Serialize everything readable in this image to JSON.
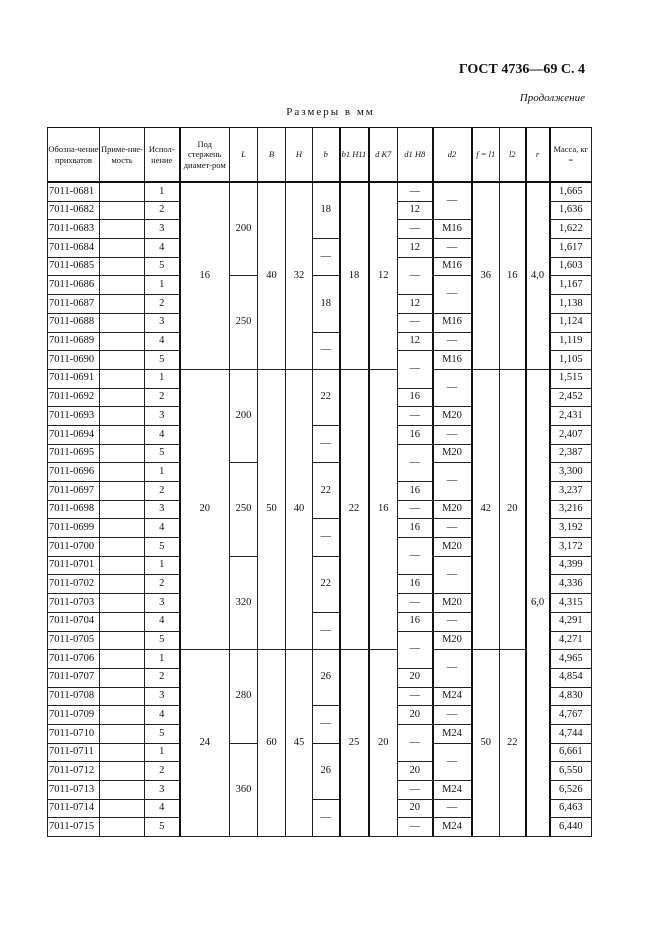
{
  "header": {
    "standard": "ГОСТ 4736—69 С. 4",
    "continuation": "Продолжение",
    "units": "Размеры в мм"
  },
  "columns": [
    {
      "key": "code",
      "label": "Обозна-чение прихватов"
    },
    {
      "key": "applicability",
      "label": "Приме-няе-мость"
    },
    {
      "key": "version",
      "label": "Испол-нение"
    },
    {
      "key": "rod",
      "label": "Под стержень диамет-ром"
    },
    {
      "key": "L",
      "label": "L"
    },
    {
      "key": "B",
      "label": "B"
    },
    {
      "key": "H",
      "label": "H"
    },
    {
      "key": "b",
      "label": "b"
    },
    {
      "key": "b1",
      "label": "b1 H11"
    },
    {
      "key": "d",
      "label": "d K7"
    },
    {
      "key": "d1",
      "label": "d1 H8"
    },
    {
      "key": "d2",
      "label": "d2"
    },
    {
      "key": "f",
      "label": "f = l1"
    },
    {
      "key": "l2",
      "label": "l2"
    },
    {
      "key": "r",
      "label": "r"
    },
    {
      "key": "mass",
      "label": "Масса, кг ="
    }
  ],
  "codes": [
    "7011-0681",
    "7011-0682",
    "7011-0683",
    "7011-0684",
    "7011-0685",
    "7011-0686",
    "7011-0687",
    "7011-0688",
    "7011-0689",
    "7011-0690",
    "7011-0691",
    "7011-0692",
    "7011-0693",
    "7011-0694",
    "7011-0695",
    "7011-0696",
    "7011-0697",
    "7011-0698",
    "7011-0699",
    "7011-0700",
    "7011-0701",
    "7011-0702",
    "7011-0703",
    "7011-0704",
    "7011-0705",
    "7011-0706",
    "7011-0707",
    "7011-0708",
    "7011-0709",
    "7011-0710",
    "7011-0711",
    "7011-0712",
    "7011-0713",
    "7011-0714",
    "7011-0715"
  ],
  "versions": [
    "1",
    "2",
    "3",
    "4",
    "5",
    "1",
    "2",
    "3",
    "4",
    "5",
    "1",
    "2",
    "3",
    "4",
    "5",
    "1",
    "2",
    "3",
    "4",
    "5",
    "1",
    "2",
    "3",
    "4",
    "5",
    "1",
    "2",
    "3",
    "4",
    "5",
    "1",
    "2",
    "3",
    "4",
    "5"
  ],
  "mass": [
    "1,665",
    "1,636",
    "1,622",
    "1,617",
    "1,603",
    "1,167",
    "1,138",
    "1,124",
    "1,119",
    "1,105",
    "1,515",
    "2,452",
    "2,431",
    "2,407",
    "2,387",
    "3,300",
    "3,237",
    "3,216",
    "3,192",
    "3,172",
    "4,399",
    "4,336",
    "4,315",
    "4,291",
    "4,271",
    "4,965",
    "4,854",
    "4,830",
    "4,767",
    "4,744",
    "6,661",
    "6,550",
    "6,526",
    "6,463",
    "6,440"
  ],
  "merged": {
    "rod": [
      [
        "16",
        10
      ],
      [
        "20",
        15
      ],
      [
        "24",
        10
      ]
    ],
    "L": [
      [
        "200",
        5
      ],
      [
        "250",
        5
      ],
      [
        "200",
        5
      ],
      [
        "250",
        5
      ],
      [
        "320",
        5
      ],
      [
        "280",
        5
      ],
      [
        "360",
        5
      ]
    ],
    "B": [
      [
        "40",
        10
      ],
      [
        "50",
        15
      ],
      [
        "60",
        10
      ]
    ],
    "H": [
      [
        "32",
        10
      ],
      [
        "40",
        15
      ],
      [
        "45",
        10
      ]
    ],
    "b": [
      [
        "18",
        3
      ],
      [
        "—",
        2
      ],
      [
        "18",
        3
      ],
      [
        "—",
        2
      ],
      [
        "22",
        3
      ],
      [
        "—",
        2
      ],
      [
        "22",
        3
      ],
      [
        "—",
        2
      ],
      [
        "22",
        3
      ],
      [
        "—",
        2
      ],
      [
        "26",
        3
      ],
      [
        "—",
        2
      ],
      [
        "26",
        3
      ],
      [
        "—",
        2
      ]
    ],
    "b1": [
      [
        "18",
        10
      ],
      [
        "22",
        15
      ],
      [
        "25",
        10
      ]
    ],
    "d": [
      [
        "12",
        10
      ],
      [
        "16",
        15
      ],
      [
        "20",
        10
      ]
    ],
    "d1": [
      [
        "—",
        1
      ],
      [
        "12",
        1
      ],
      [
        "—",
        1
      ],
      [
        "12",
        1
      ],
      [
        "—",
        2
      ],
      [
        "12",
        1
      ],
      [
        "—",
        1
      ],
      [
        "12",
        1
      ],
      [
        "—",
        2
      ],
      [
        "16",
        1
      ],
      [
        "—",
        1
      ],
      [
        "16",
        1
      ],
      [
        "—",
        2
      ],
      [
        "16",
        1
      ],
      [
        "—",
        1
      ],
      [
        "16",
        1
      ],
      [
        "—",
        2
      ],
      [
        "16",
        1
      ],
      [
        "—",
        1
      ],
      [
        "16",
        1
      ],
      [
        "—",
        2
      ],
      [
        "20",
        1
      ],
      [
        "—",
        1
      ],
      [
        "20",
        1
      ],
      [
        "—",
        2
      ],
      [
        "20",
        1
      ],
      [
        "—",
        1
      ],
      [
        "20",
        1
      ],
      [
        "—",
        1
      ]
    ],
    "d2": [
      [
        "—",
        2
      ],
      [
        "M16",
        1
      ],
      [
        "—",
        1
      ],
      [
        "M16",
        1
      ],
      [
        "—",
        2
      ],
      [
        "M16",
        1
      ],
      [
        "—",
        1
      ],
      [
        "M16",
        1
      ],
      [
        "—",
        2
      ],
      [
        "M20",
        1
      ],
      [
        "—",
        1
      ],
      [
        "M20",
        1
      ],
      [
        "—",
        2
      ],
      [
        "M20",
        1
      ],
      [
        "—",
        1
      ],
      [
        "M20",
        1
      ],
      [
        "—",
        2
      ],
      [
        "M20",
        1
      ],
      [
        "—",
        1
      ],
      [
        "M20",
        1
      ],
      [
        "—",
        2
      ],
      [
        "M24",
        1
      ],
      [
        "—",
        1
      ],
      [
        "M24",
        1
      ],
      [
        "—",
        2
      ],
      [
        "M24",
        1
      ],
      [
        "—",
        1
      ],
      [
        "M24",
        1
      ]
    ],
    "f": [
      [
        "36",
        10
      ],
      [
        "42",
        15
      ],
      [
        "50",
        10
      ]
    ],
    "l2": [
      [
        "16",
        10
      ],
      [
        "20",
        15
      ],
      [
        "22",
        10
      ]
    ],
    "r": [
      [
        "4,0",
        10
      ],
      [
        "6,0",
        25
      ]
    ]
  }
}
